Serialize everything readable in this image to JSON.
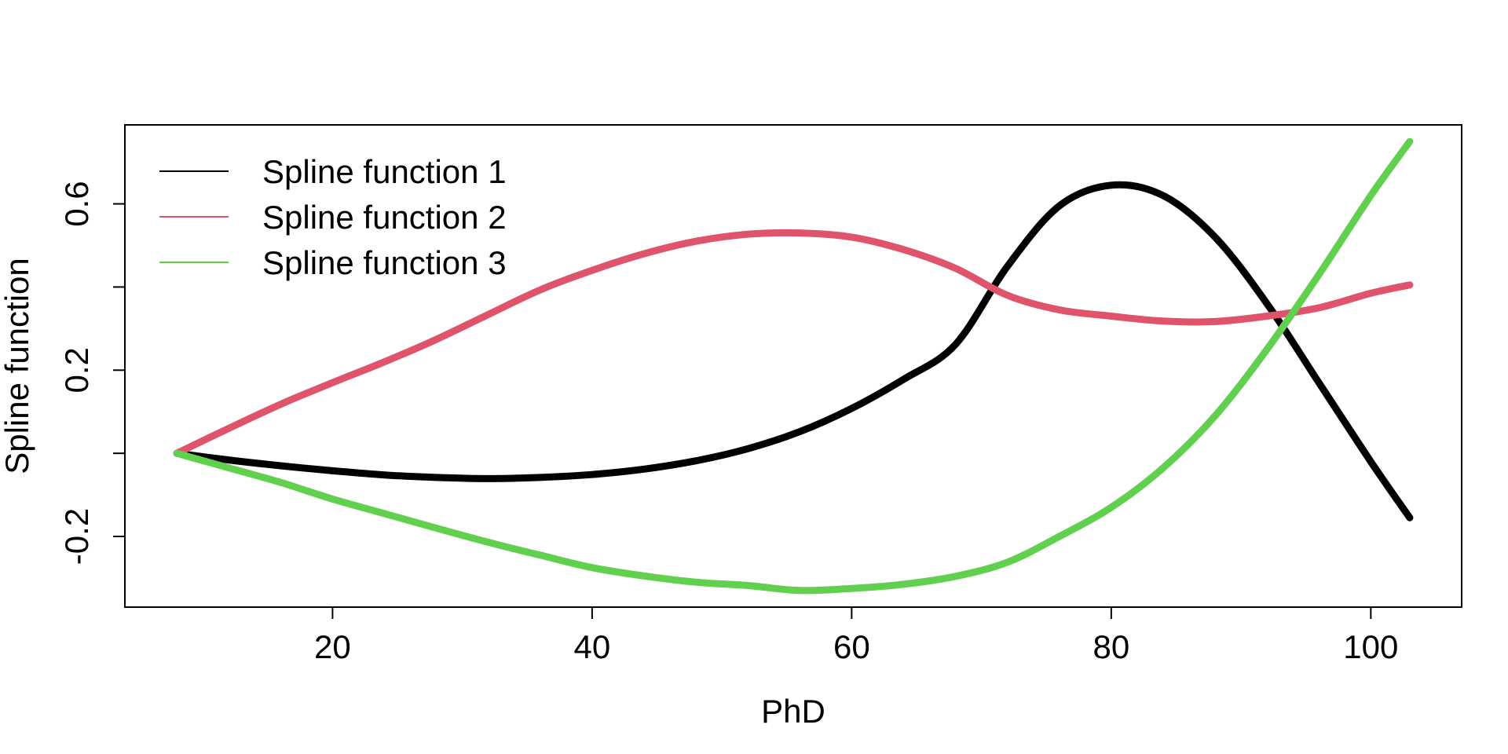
{
  "chart_data": {
    "type": "line",
    "title": "",
    "xlabel": "PhD",
    "ylabel": "Spline function",
    "xlim": [
      4,
      107
    ],
    "ylim": [
      -0.37,
      0.79
    ],
    "xticks": [
      20,
      40,
      60,
      80,
      100
    ],
    "xtick_labels": [
      "20",
      "40",
      "60",
      "80",
      "100"
    ],
    "yticks": [
      -0.2,
      0.0,
      0.2,
      0.4,
      0.6
    ],
    "ytick_labels": [
      "-0.2",
      "",
      "0.2",
      "",
      "0.6"
    ],
    "grid": false,
    "legend_position": "top-left",
    "x": [
      8,
      12,
      16,
      20,
      24,
      28,
      32,
      36,
      40,
      44,
      48,
      52,
      56,
      60,
      64,
      68,
      72,
      76,
      80,
      84,
      88,
      92,
      96,
      100,
      103
    ],
    "series": [
      {
        "name": "Spline function 1",
        "color": "#000000",
        "values": [
          0.0,
          -0.016,
          -0.03,
          -0.042,
          -0.052,
          -0.058,
          -0.061,
          -0.058,
          -0.051,
          -0.038,
          -0.018,
          0.011,
          0.052,
          0.108,
          0.178,
          0.262,
          0.45,
          0.595,
          0.645,
          0.62,
          0.52,
          0.36,
          0.17,
          -0.02,
          -0.155
        ]
      },
      {
        "name": "Spline function 2",
        "color": "#DF536B",
        "values": [
          0.0,
          0.06,
          0.118,
          0.17,
          0.22,
          0.274,
          0.334,
          0.393,
          0.44,
          0.48,
          0.51,
          0.527,
          0.53,
          0.52,
          0.49,
          0.445,
          0.38,
          0.345,
          0.33,
          0.318,
          0.317,
          0.33,
          0.35,
          0.385,
          0.405
        ]
      },
      {
        "name": "Spline function 3",
        "color": "#61D04F",
        "values": [
          0.0,
          -0.035,
          -0.07,
          -0.11,
          -0.145,
          -0.18,
          -0.214,
          -0.245,
          -0.275,
          -0.295,
          -0.31,
          -0.318,
          -0.33,
          -0.325,
          -0.315,
          -0.296,
          -0.262,
          -0.2,
          -0.13,
          -0.035,
          0.09,
          0.25,
          0.43,
          0.62,
          0.75
        ]
      }
    ]
  }
}
